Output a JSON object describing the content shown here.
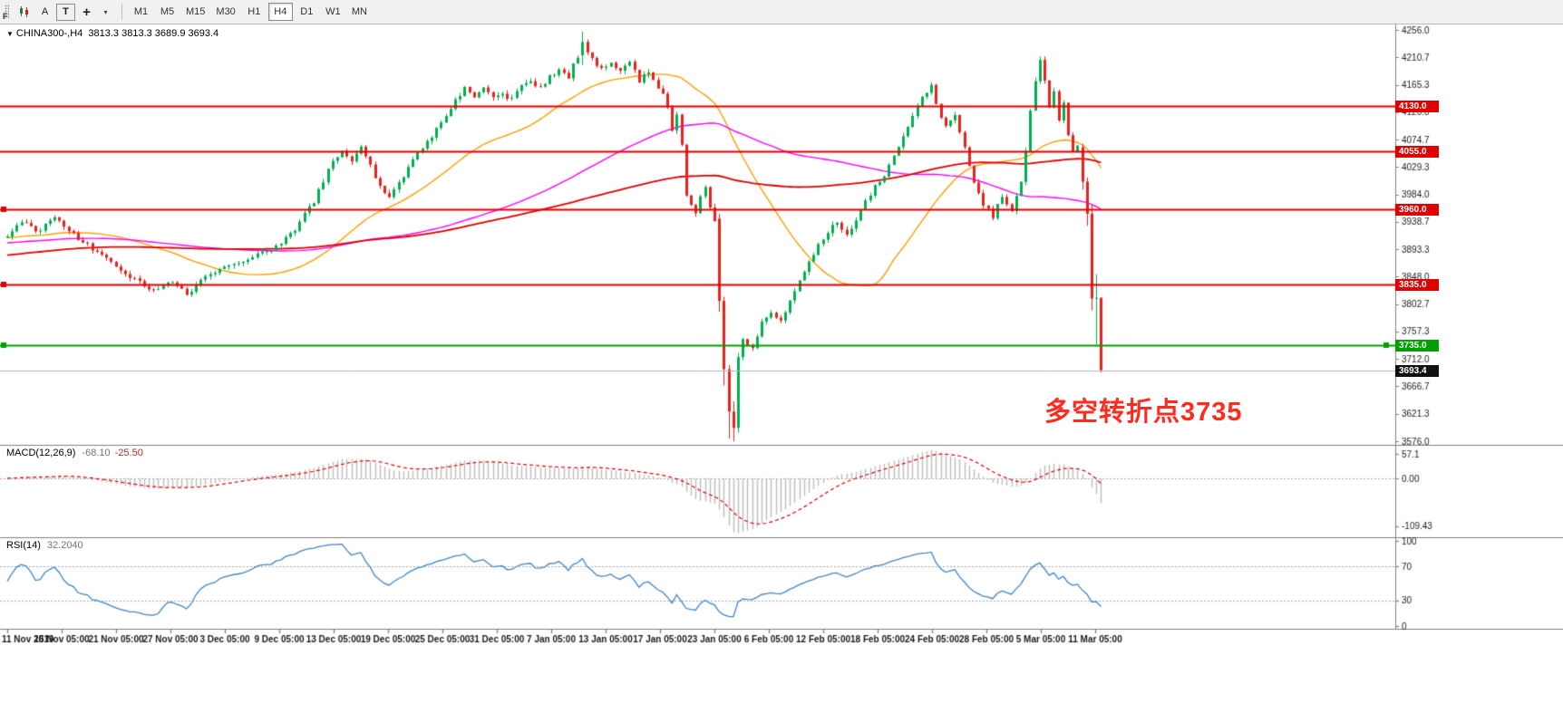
{
  "toolbar": {
    "dock_letter": "F",
    "tools": [
      {
        "label": "A"
      },
      {
        "label": "T"
      }
    ],
    "timeframes": [
      "M1",
      "M5",
      "M15",
      "M30",
      "H1",
      "H4",
      "D1",
      "W1",
      "MN"
    ],
    "active_timeframe": "H4"
  },
  "chart": {
    "title_symbol": "CHINA300-,H4",
    "title_ohlc": "3813.3 3813.3 3689.9 3693.4",
    "annotation_text": "多空转折点3735"
  },
  "indicators": {
    "macd": {
      "name": "MACD(12,26,9)",
      "value_main": "-68.10",
      "value_signal": "-25.50"
    },
    "rsi": {
      "name": "RSI(14)",
      "value": "32.2040"
    }
  },
  "chart_data": {
    "type": "candlestick",
    "symbol": "CHINA300-",
    "timeframe": "H4",
    "current_bar": {
      "open": 3813.3,
      "high": 3813.3,
      "low": 3689.9,
      "close": 3693.4
    },
    "y_axis": {
      "max": 4256.0,
      "min": 3576.0,
      "tick_labels": [
        "4256.0",
        "4210.7",
        "4165.3",
        "4120.0",
        "4074.7",
        "4029.3",
        "3984.0",
        "3938.7",
        "3893.3",
        "3848.0",
        "3802.7",
        "3757.3",
        "3712.0",
        "3666.7",
        "3621.3",
        "3576.0"
      ]
    },
    "x_axis": {
      "labels": [
        "11 Nov 2019",
        "15 Nov 05:00",
        "21 Nov 05:00",
        "27 Nov 05:00",
        "3 Dec 05:00",
        "9 Dec 05:00",
        "13 Dec 05:00",
        "19 Dec 05:00",
        "25 Dec 05:00",
        "31 Dec 05:00",
        "7 Jan 05:00",
        "13 Jan 05:00",
        "17 Jan 05:00",
        "23 Jan 05:00",
        "6 Feb 05:00",
        "12 Feb 05:00",
        "18 Feb 05:00",
        "24 Feb 05:00",
        "28 Feb 05:00",
        "5 Mar 05:00",
        "11 Mar 05:00"
      ]
    },
    "levels": [
      {
        "price": 4130.0,
        "label": "4130.0",
        "line_color": "#e00000",
        "tag_bg": "#e00000",
        "width": 2,
        "handles": []
      },
      {
        "price": 4055.0,
        "label": "4055.0",
        "line_color": "#e00000",
        "tag_bg": "#e00000",
        "width": 2,
        "handles": []
      },
      {
        "price": 3960.0,
        "label": "3960.0",
        "line_color": "#e00000",
        "tag_bg": "#e00000",
        "width": 2,
        "handles": [
          "left"
        ]
      },
      {
        "price": 3835.0,
        "label": "3835.0",
        "line_color": "#e00000",
        "tag_bg": "#e00000",
        "width": 2,
        "handles": [
          "left"
        ]
      },
      {
        "price": 3735.0,
        "label": "3735.0",
        "line_color": "#00a000",
        "tag_bg": "#00a000",
        "width": 2,
        "handles": [
          "left",
          "right"
        ]
      },
      {
        "price": 3693.4,
        "label": "3693.4",
        "line_color": "#b4b4b4",
        "tag_bg": "#111111",
        "width": 1,
        "handles": [],
        "current": true
      }
    ],
    "bar_count": 233,
    "price_waypoints": [
      [
        0,
        3915
      ],
      [
        3,
        3938
      ],
      [
        6,
        3922
      ],
      [
        10,
        3945
      ],
      [
        14,
        3918
      ],
      [
        18,
        3895
      ],
      [
        23,
        3868
      ],
      [
        27,
        3842
      ],
      [
        31,
        3822
      ],
      [
        34,
        3841
      ],
      [
        38,
        3818
      ],
      [
        42,
        3846
      ],
      [
        46,
        3860
      ],
      [
        50,
        3872
      ],
      [
        54,
        3888
      ],
      [
        58,
        3902
      ],
      [
        61,
        3924
      ],
      [
        63,
        3956
      ],
      [
        65,
        3974
      ],
      [
        67,
        4004
      ],
      [
        69,
        4040
      ],
      [
        71,
        4054
      ],
      [
        73,
        4042
      ],
      [
        75,
        4060
      ],
      [
        77,
        4030
      ],
      [
        79,
        3996
      ],
      [
        81,
        3978
      ],
      [
        83,
        4000
      ],
      [
        85,
        4030
      ],
      [
        87,
        4052
      ],
      [
        89,
        4074
      ],
      [
        91,
        4090
      ],
      [
        93,
        4114
      ],
      [
        95,
        4138
      ],
      [
        97,
        4158
      ],
      [
        99,
        4148
      ],
      [
        101,
        4160
      ],
      [
        103,
        4146
      ],
      [
        105,
        4152
      ],
      [
        107,
        4140
      ],
      [
        109,
        4164
      ],
      [
        111,
        4170
      ],
      [
        113,
        4158
      ],
      [
        115,
        4178
      ],
      [
        117,
        4194
      ],
      [
        119,
        4180
      ],
      [
        121,
        4212
      ],
      [
        122,
        4236
      ],
      [
        124,
        4206
      ],
      [
        126,
        4190
      ],
      [
        128,
        4206
      ],
      [
        130,
        4186
      ],
      [
        132,
        4200
      ],
      [
        134,
        4172
      ],
      [
        136,
        4190
      ],
      [
        138,
        4162
      ],
      [
        140,
        4132
      ],
      [
        141,
        4092
      ],
      [
        142,
        4118
      ],
      [
        143,
        4062
      ],
      [
        144,
        3978
      ],
      [
        146,
        3952
      ],
      [
        147,
        3984
      ],
      [
        148,
        3992
      ],
      [
        149,
        3966
      ],
      [
        150,
        3944
      ],
      [
        151,
        3808
      ],
      [
        152,
        3695
      ],
      [
        153,
        3625
      ],
      [
        154,
        3598
      ],
      [
        155,
        3715
      ],
      [
        156,
        3748
      ],
      [
        158,
        3728
      ],
      [
        160,
        3778
      ],
      [
        162,
        3792
      ],
      [
        164,
        3774
      ],
      [
        166,
        3810
      ],
      [
        168,
        3844
      ],
      [
        170,
        3872
      ],
      [
        172,
        3900
      ],
      [
        174,
        3924
      ],
      [
        176,
        3936
      ],
      [
        178,
        3914
      ],
      [
        180,
        3944
      ],
      [
        182,
        3970
      ],
      [
        184,
        3996
      ],
      [
        186,
        4014
      ],
      [
        188,
        4044
      ],
      [
        190,
        4078
      ],
      [
        192,
        4110
      ],
      [
        194,
        4144
      ],
      [
        196,
        4164
      ],
      [
        197,
        4132
      ],
      [
        199,
        4096
      ],
      [
        201,
        4116
      ],
      [
        203,
        4062
      ],
      [
        205,
        4008
      ],
      [
        207,
        3966
      ],
      [
        209,
        3948
      ],
      [
        211,
        3984
      ],
      [
        213,
        3958
      ],
      [
        215,
        4006
      ],
      [
        216,
        4060
      ],
      [
        217,
        4118
      ],
      [
        218,
        4172
      ],
      [
        219,
        4206
      ],
      [
        220,
        4168
      ],
      [
        221,
        4130
      ],
      [
        222,
        4150
      ],
      [
        223,
        4108
      ],
      [
        224,
        4134
      ],
      [
        225,
        4086
      ],
      [
        226,
        4058
      ],
      [
        227,
        4062
      ],
      [
        228,
        4005
      ],
      [
        229,
        3952
      ],
      [
        230,
        3812
      ],
      [
        231,
        3813
      ],
      [
        232,
        3693
      ]
    ],
    "prehistory_waypoints": [
      [
        -160,
        3780
      ],
      [
        -120,
        3850
      ],
      [
        -80,
        3890
      ],
      [
        -40,
        3910
      ],
      [
        0,
        3915
      ]
    ],
    "overrides": {
      "122": [
        4214,
        4253,
        4198,
        4236
      ],
      "151": [
        3944,
        3952,
        3790,
        3808
      ],
      "152": [
        3808,
        3815,
        3668,
        3695
      ],
      "153": [
        3695,
        3702,
        3580,
        3625
      ],
      "154": [
        3625,
        3642,
        3576,
        3598
      ],
      "155": [
        3598,
        3722,
        3590,
        3715
      ],
      "228": [
        4062,
        4068,
        3992,
        4005
      ],
      "229": [
        4005,
        4012,
        3932,
        3952
      ],
      "230": [
        3952,
        3968,
        3792,
        3812
      ],
      "231": [
        3812,
        3852,
        3736,
        3813
      ],
      "232": [
        3813.3,
        3813.3,
        3689.9,
        3693.4
      ]
    },
    "moving_averages": [
      {
        "period": 34,
        "color_key": "ma_fast"
      },
      {
        "period": 89,
        "color_key": "ma_mid"
      },
      {
        "period": 144,
        "color_key": "ma_slow"
      }
    ],
    "macd_axis": [
      {
        "v": 57.1,
        "t": "57.1"
      },
      {
        "v": 0,
        "t": "0.00"
      },
      {
        "v": -109.43,
        "t": "-109.43"
      }
    ],
    "rsi_axis": [
      {
        "v": 100,
        "t": "100"
      },
      {
        "v": 70,
        "t": "70"
      },
      {
        "v": 30,
        "t": "30"
      },
      {
        "v": 0,
        "t": "0"
      }
    ],
    "rsi_levels": [
      30,
      70
    ],
    "colors": {
      "up": "#00b050",
      "down": "#ee201c",
      "ma_fast": "#ff9d00",
      "ma_mid": "#ff00ff",
      "ma_slow": "#e00000",
      "macd_hist": "#bdbdbd",
      "macd_signal": "#e00000",
      "rsi": "#4086c8",
      "axis_text": "#1a1a1a",
      "separator": "#808080",
      "dotted": "#a8a8a8"
    }
  }
}
